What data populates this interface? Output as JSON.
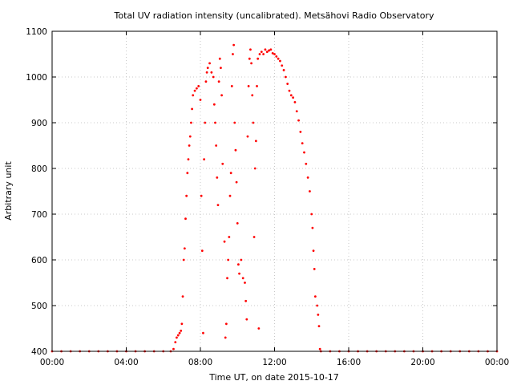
{
  "chart_data": {
    "type": "scatter",
    "title": "Total UV radiation intensity (uncalibrated). Metsähovi Radio Observatory",
    "xlabel": "Time UT, on date 2015-10-17",
    "ylabel": "Arbitrary unit",
    "xlim": [
      0,
      24
    ],
    "ylim": [
      400,
      1100
    ],
    "xticks": [
      0,
      4,
      8,
      12,
      16,
      20,
      24
    ],
    "xtick_labels": [
      "00:00",
      "04:00",
      "08:00",
      "12:00",
      "16:00",
      "20:00",
      "00:00"
    ],
    "yticks": [
      400,
      500,
      600,
      700,
      800,
      900,
      1000,
      1100
    ],
    "ytick_labels": [
      "400",
      "500",
      "600",
      "700",
      "800",
      "900",
      "1000",
      "1100"
    ],
    "grid": true,
    "marker_color": "#ff0000",
    "series": [
      {
        "values_note": "",
        "points": [
          [
            0.0,
            400
          ],
          [
            0.5,
            400
          ],
          [
            1.0,
            400
          ],
          [
            1.5,
            400
          ],
          [
            2.0,
            400
          ],
          [
            2.5,
            400
          ],
          [
            3.0,
            400
          ],
          [
            3.5,
            400
          ],
          [
            4.0,
            400
          ],
          [
            4.5,
            400
          ],
          [
            5.0,
            400
          ],
          [
            5.5,
            400
          ],
          [
            6.0,
            400
          ],
          [
            6.4,
            400
          ],
          [
            6.55,
            405
          ],
          [
            6.65,
            420
          ],
          [
            6.72,
            430
          ],
          [
            6.8,
            435
          ],
          [
            6.88,
            440
          ],
          [
            6.95,
            445
          ],
          [
            7.0,
            460
          ],
          [
            7.05,
            520
          ],
          [
            7.1,
            600
          ],
          [
            7.15,
            625
          ],
          [
            7.2,
            690
          ],
          [
            7.25,
            740
          ],
          [
            7.3,
            790
          ],
          [
            7.35,
            820
          ],
          [
            7.4,
            850
          ],
          [
            7.45,
            870
          ],
          [
            7.5,
            900
          ],
          [
            7.55,
            930
          ],
          [
            7.6,
            960
          ],
          [
            7.7,
            970
          ],
          [
            7.8,
            975
          ],
          [
            7.9,
            980
          ],
          [
            8.0,
            950
          ],
          [
            8.05,
            740
          ],
          [
            8.1,
            620
          ],
          [
            8.15,
            440
          ],
          [
            8.2,
            820
          ],
          [
            8.25,
            900
          ],
          [
            8.3,
            990
          ],
          [
            8.35,
            1010
          ],
          [
            8.4,
            1020
          ],
          [
            8.5,
            1030
          ],
          [
            8.6,
            1010
          ],
          [
            8.7,
            1000
          ],
          [
            8.75,
            940
          ],
          [
            8.8,
            900
          ],
          [
            8.85,
            850
          ],
          [
            8.9,
            780
          ],
          [
            8.95,
            720
          ],
          [
            9.0,
            990
          ],
          [
            9.05,
            1040
          ],
          [
            9.1,
            1020
          ],
          [
            9.15,
            960
          ],
          [
            9.2,
            810
          ],
          [
            9.3,
            640
          ],
          [
            9.35,
            430
          ],
          [
            9.4,
            460
          ],
          [
            9.45,
            560
          ],
          [
            9.5,
            600
          ],
          [
            9.55,
            650
          ],
          [
            9.6,
            740
          ],
          [
            9.65,
            790
          ],
          [
            9.7,
            980
          ],
          [
            9.75,
            1050
          ],
          [
            9.8,
            1070
          ],
          [
            9.85,
            900
          ],
          [
            9.9,
            840
          ],
          [
            9.95,
            770
          ],
          [
            10.0,
            680
          ],
          [
            10.05,
            590
          ],
          [
            10.1,
            570
          ],
          [
            10.2,
            600
          ],
          [
            10.3,
            560
          ],
          [
            10.4,
            550
          ],
          [
            10.45,
            510
          ],
          [
            10.5,
            470
          ],
          [
            10.55,
            870
          ],
          [
            10.6,
            980
          ],
          [
            10.65,
            1040
          ],
          [
            10.7,
            1060
          ],
          [
            10.75,
            1030
          ],
          [
            10.8,
            960
          ],
          [
            10.85,
            900
          ],
          [
            10.9,
            650
          ],
          [
            10.95,
            800
          ],
          [
            11.0,
            860
          ],
          [
            11.05,
            980
          ],
          [
            11.1,
            1040
          ],
          [
            11.15,
            450
          ],
          [
            11.2,
            1050
          ],
          [
            11.3,
            1055
          ],
          [
            11.4,
            1050
          ],
          [
            11.5,
            1060
          ],
          [
            11.6,
            1055
          ],
          [
            11.7,
            1058
          ],
          [
            11.8,
            1060
          ],
          [
            11.9,
            1052
          ],
          [
            12.0,
            1050
          ],
          [
            12.1,
            1045
          ],
          [
            12.2,
            1040
          ],
          [
            12.3,
            1035
          ],
          [
            12.4,
            1025
          ],
          [
            12.5,
            1015
          ],
          [
            12.6,
            1000
          ],
          [
            12.7,
            985
          ],
          [
            12.8,
            970
          ],
          [
            12.9,
            960
          ],
          [
            13.0,
            955
          ],
          [
            13.1,
            945
          ],
          [
            13.2,
            925
          ],
          [
            13.3,
            905
          ],
          [
            13.4,
            880
          ],
          [
            13.5,
            855
          ],
          [
            13.6,
            835
          ],
          [
            13.7,
            810
          ],
          [
            13.8,
            780
          ],
          [
            13.9,
            750
          ],
          [
            14.0,
            700
          ],
          [
            14.05,
            670
          ],
          [
            14.1,
            620
          ],
          [
            14.15,
            580
          ],
          [
            14.2,
            520
          ],
          [
            14.3,
            500
          ],
          [
            14.35,
            480
          ],
          [
            14.4,
            455
          ],
          [
            14.45,
            405
          ],
          [
            14.5,
            400
          ],
          [
            15.0,
            400
          ],
          [
            15.5,
            400
          ],
          [
            16.0,
            400
          ],
          [
            16.5,
            400
          ],
          [
            17.0,
            400
          ],
          [
            17.5,
            400
          ],
          [
            18.0,
            400
          ],
          [
            18.5,
            400
          ],
          [
            19.0,
            400
          ],
          [
            19.5,
            400
          ],
          [
            20.0,
            400
          ],
          [
            20.5,
            400
          ],
          [
            21.0,
            400
          ],
          [
            21.5,
            400
          ],
          [
            22.0,
            400
          ],
          [
            22.5,
            400
          ],
          [
            23.0,
            400
          ],
          [
            23.5,
            400
          ],
          [
            24.0,
            400
          ]
        ]
      }
    ]
  }
}
